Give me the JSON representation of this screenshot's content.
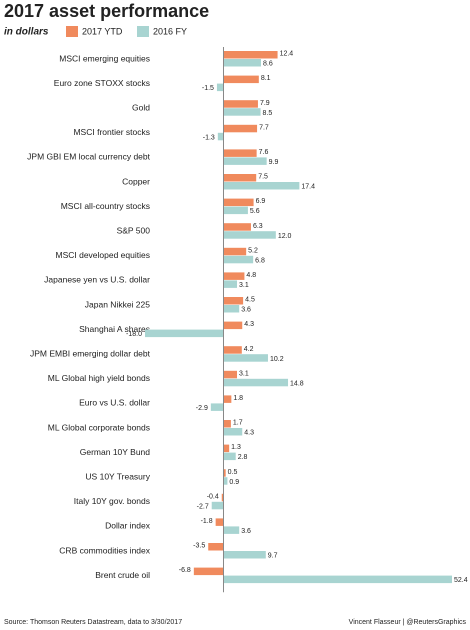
{
  "chart_data": {
    "type": "bar",
    "orientation": "horizontal",
    "title": "2017 asset performance",
    "subtitle": "in dollars",
    "source": "Source: Thomson Reuters Datastream, data to 3/30/2017",
    "credit": "Vincent Flasseur | @ReutersGraphics",
    "categories": [
      "MSCI emerging equities",
      "Euro zone STOXX stocks",
      "Gold",
      "MSCI frontier stocks",
      "JPM GBI EM local currency debt",
      "Copper",
      "MSCI all-country stocks",
      "S&P 500",
      "MSCI developed equities",
      "Japanese yen vs U.S. dollar",
      "Japan Nikkei 225",
      "Shanghai A shares",
      "JPM EMBI emerging dollar debt",
      "ML Global high yield bonds",
      "Euro vs U.S. dollar",
      "ML Global corporate bonds",
      "German 10Y Bund",
      "US 10Y Treasury",
      "Italy 10Y gov. bonds",
      "Dollar index",
      "CRB commodities index",
      "Brent crude oil"
    ],
    "series": [
      {
        "name": "2017 YTD",
        "color": "#f08a5d",
        "values": [
          12.4,
          8.1,
          7.9,
          7.7,
          7.6,
          7.5,
          6.9,
          6.3,
          5.2,
          4.8,
          4.5,
          4.3,
          4.2,
          3.1,
          1.8,
          1.7,
          1.3,
          0.5,
          -0.4,
          -1.8,
          -3.5,
          -6.8
        ],
        "value_labels": [
          "12.4",
          "8.1",
          "7.9",
          "7.7",
          "7.6",
          "7.5",
          "6.9",
          "6.3",
          "5.2",
          "4.8",
          "4.5",
          "4.3",
          "4.2",
          "3.1",
          "1.8",
          "1.7",
          "1.3",
          "0.5",
          "-0.4",
          "-1.8",
          "-3.5",
          "-6.8"
        ]
      },
      {
        "name": "2016 FY",
        "color": "#a8d4d1",
        "values": [
          8.6,
          -1.5,
          8.5,
          -1.3,
          9.9,
          17.4,
          5.6,
          12.0,
          6.8,
          3.1,
          3.6,
          -18.0,
          10.2,
          14.8,
          -2.9,
          4.3,
          2.8,
          0.9,
          -2.7,
          3.6,
          9.7,
          52.4
        ],
        "value_labels": [
          "8.6",
          "-1.5",
          "8.5",
          "-1.3",
          "9.9",
          "17.4",
          "5.6",
          "12.0",
          "6.8",
          "3.1",
          "3.6",
          "-18.0",
          "10.2",
          "14.8",
          "-2.9",
          "4.3",
          "2.8",
          "0.9",
          "-2.7",
          "3.6",
          "9.7",
          "52.4"
        ]
      }
    ]
  }
}
